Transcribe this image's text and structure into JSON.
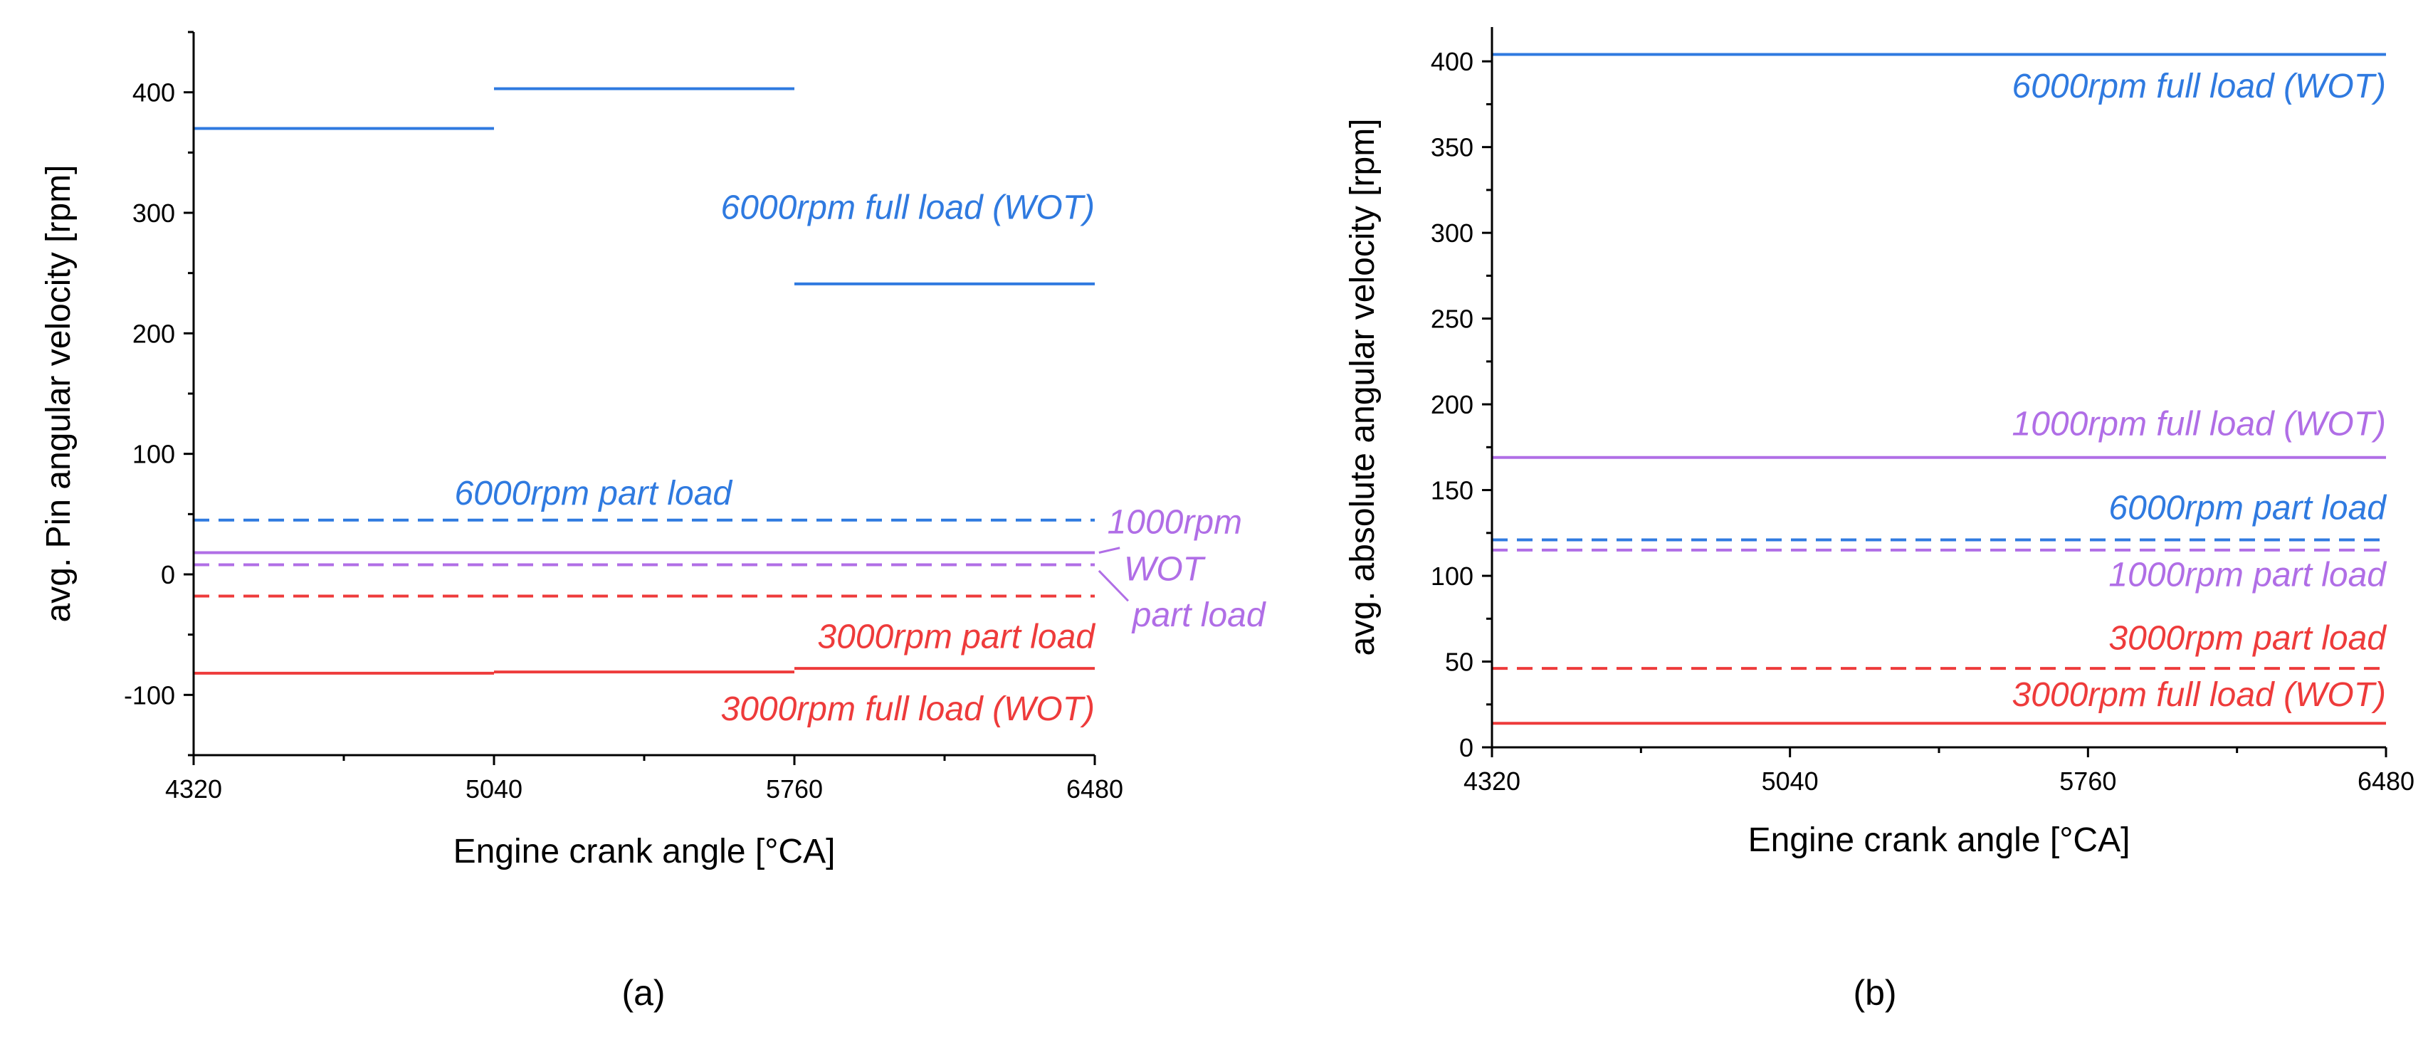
{
  "chart_data": [
    {
      "type": "line",
      "panel_label": "(a)",
      "xlabel": "Engine crank angle [°CA]",
      "ylabel": "avg. Pin angular velocity [rpm]",
      "xlim": [
        4320,
        6480
      ],
      "ylim": [
        -150,
        450
      ],
      "xticks": [
        4320,
        5040,
        5760,
        6480
      ],
      "xtick_labels": [
        "4320",
        "5040",
        "5760",
        "6480"
      ],
      "yticks": [
        -100,
        0,
        100,
        200,
        300,
        400
      ],
      "ytick_labels": [
        "-100",
        "0",
        "100",
        "200",
        "300",
        "400"
      ],
      "series": [
        {
          "name": "6000rpm full load (WOT)",
          "color": "#2f7ae0",
          "style": "solid",
          "segments": [
            [
              4320,
              5040,
              370
            ],
            [
              5040,
              5760,
              403
            ],
            [
              5760,
              6480,
              241
            ]
          ]
        },
        {
          "name": "6000rpm part load",
          "color": "#2f7ae0",
          "style": "dashed",
          "segments": [
            [
              4320,
              6480,
              45
            ]
          ]
        },
        {
          "name": "1000rpm WOT",
          "color": "#b06ee6",
          "style": "solid",
          "segments": [
            [
              4320,
              6480,
              18
            ]
          ]
        },
        {
          "name": "1000rpm part load",
          "color": "#b06ee6",
          "style": "dashed",
          "segments": [
            [
              4320,
              6480,
              8
            ]
          ]
        },
        {
          "name": "3000rpm part load",
          "color": "#ee3b3b",
          "style": "dashed",
          "segments": [
            [
              4320,
              6480,
              -18
            ]
          ]
        },
        {
          "name": "3000rpm full load (WOT)",
          "color": "#ee3b3b",
          "style": "solid",
          "segments": [
            [
              4320,
              5040,
              -82
            ],
            [
              5040,
              5760,
              -81
            ],
            [
              5760,
              6480,
              -78
            ]
          ]
        }
      ],
      "annotations": [
        {
          "text": "6000rpm full load (WOT)",
          "color": "#2f7ae0",
          "x": 6480,
          "y": 295,
          "anchor": "end"
        },
        {
          "text": "6000rpm part load",
          "color": "#2f7ae0",
          "x": 5610,
          "y": 58,
          "anchor": "end"
        },
        {
          "text": "1000rpm",
          "color": "#b06ee6",
          "x": 6510,
          "y": 34,
          "anchor": "start"
        },
        {
          "text": "WOT",
          "color": "#b06ee6",
          "x": 6550,
          "y": -5,
          "anchor": "start"
        },
        {
          "text": "part load",
          "color": "#b06ee6",
          "x": 6570,
          "y": -43,
          "anchor": "start"
        },
        {
          "text": "3000rpm part load",
          "color": "#ee3b3b",
          "x": 6480,
          "y": -61,
          "anchor": "end"
        },
        {
          "text": "3000rpm full load (WOT)",
          "color": "#ee3b3b",
          "x": 6480,
          "y": -121,
          "anchor": "end"
        }
      ],
      "leaders": [
        {
          "color": "#b06ee6",
          "from": [
            6490,
            18
          ],
          "to": [
            6540,
            22
          ]
        },
        {
          "color": "#b06ee6",
          "from": [
            6490,
            3
          ],
          "to": [
            6560,
            -22
          ]
        }
      ]
    },
    {
      "type": "line",
      "panel_label": "(b)",
      "xlabel": "Engine crank angle [°CA]",
      "ylabel": "avg. absolute angular velocity [rpm]",
      "xlim": [
        4320,
        6480
      ],
      "ylim": [
        0,
        420
      ],
      "xticks": [
        4320,
        5040,
        5760,
        6480
      ],
      "xtick_labels": [
        "4320",
        "5040",
        "5760",
        "6480"
      ],
      "yticks": [
        0,
        50,
        100,
        150,
        200,
        250,
        300,
        350,
        400
      ],
      "ytick_labels": [
        "0",
        "50",
        "100",
        "150",
        "200",
        "250",
        "300",
        "350",
        "400"
      ],
      "series": [
        {
          "name": "6000rpm full load (WOT)",
          "color": "#2f7ae0",
          "style": "solid",
          "segments": [
            [
              4320,
              6480,
              404
            ]
          ]
        },
        {
          "name": "1000rpm full load (WOT)",
          "color": "#b06ee6",
          "style": "solid",
          "segments": [
            [
              4320,
              6480,
              169
            ]
          ]
        },
        {
          "name": "6000rpm part load",
          "color": "#2f7ae0",
          "style": "dashed",
          "segments": [
            [
              4320,
              6480,
              121
            ]
          ]
        },
        {
          "name": "1000rpm part load",
          "color": "#b06ee6",
          "style": "dashed",
          "segments": [
            [
              4320,
              6480,
              115
            ]
          ]
        },
        {
          "name": "3000rpm part load",
          "color": "#ee3b3b",
          "style": "dashed",
          "segments": [
            [
              4320,
              6480,
              46
            ]
          ]
        },
        {
          "name": "3000rpm full load (WOT)",
          "color": "#ee3b3b",
          "style": "solid",
          "segments": [
            [
              4320,
              6480,
              14
            ]
          ]
        }
      ],
      "annotations": [
        {
          "text": "6000rpm full load (WOT)",
          "color": "#2f7ae0",
          "x": 6480,
          "y": 379,
          "anchor": "end"
        },
        {
          "text": "1000rpm full load (WOT)",
          "color": "#b06ee6",
          "x": 6480,
          "y": 182,
          "anchor": "end"
        },
        {
          "text": "6000rpm part load",
          "color": "#2f7ae0",
          "x": 6480,
          "y": 133,
          "anchor": "end"
        },
        {
          "text": "1000rpm part load",
          "color": "#b06ee6",
          "x": 6480,
          "y": 94,
          "anchor": "end"
        },
        {
          "text": "3000rpm part load",
          "color": "#ee3b3b",
          "x": 6480,
          "y": 57,
          "anchor": "end"
        },
        {
          "text": "3000rpm full load (WOT)",
          "color": "#ee3b3b",
          "x": 6480,
          "y": 24,
          "anchor": "end"
        }
      ],
      "leaders": []
    }
  ]
}
